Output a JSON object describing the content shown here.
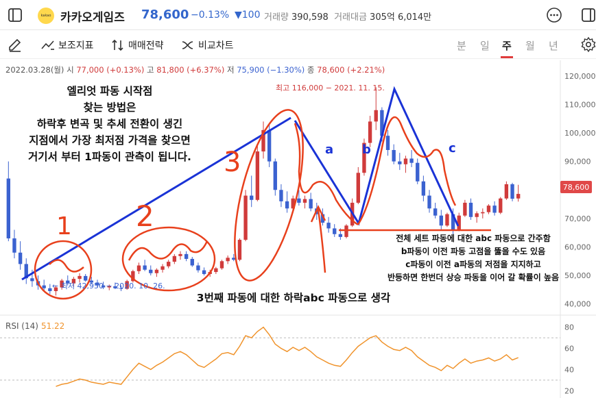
{
  "header": {
    "logo_text": "kakao games",
    "stock_name": "카카오게임즈",
    "price": "78,600",
    "change_pct": "−0.13%",
    "change_abs": "▼100",
    "volume_label": "거래량",
    "volume": "390,598",
    "amount_label": "거래대금",
    "amount": "305억 6,014만"
  },
  "toolbar": {
    "indicators": "보조지표",
    "strategy": "매매전략",
    "compare": "비교차트",
    "periods": [
      "분",
      "일",
      "주",
      "월",
      "년"
    ],
    "active_period": "주"
  },
  "info": {
    "date": "2022.03.28(월)",
    "open_label": "시",
    "open": "77,000 (+0.13%)",
    "high_label": "고",
    "high": "81,800 (+6.37%)",
    "low_label": "저",
    "low": "75,900 (−1.30%)",
    "close_label": "종",
    "close": "78,600 (+2.21%)"
  },
  "annotations": {
    "elliot_title": [
      "엘리엇 파동 시작점",
      "찾는 방법은",
      "하락후 변곡 및 추세 전환이 생긴",
      "지점에서 가장 최저점 가격을 찾으면",
      "거기서 부터 1파동이 관측이 됩니다."
    ],
    "abc_note": "3번째 파동에 대한 하락abc 파동으로 생각",
    "set_note": [
      "전체 세트 파동에 대한 abc 파동으로 간주함",
      "b파동이 이전 파동 고점을 뚫을 수도 있음",
      "c파동이 이전 a파동의 저점을 지지하고",
      "반등하면 한번더 상승 파동을 이어 갈 확률이 높음"
    ],
    "wave_1": "1",
    "wave_2": "2",
    "wave_3": "3",
    "wave_a": "a",
    "wave_b": "b",
    "wave_c": "c",
    "high_marker": "최고 116,000 − 2021. 11. 15.",
    "low_marker": "← 최저 42,950 − 2020. 10. 26.",
    "price_tag": "78,600"
  },
  "rsi": {
    "label": "RSI (14)",
    "value": "51.22"
  },
  "colors": {
    "up": "#d03b3b",
    "down": "#3b62d0",
    "rsi": "#f0932b",
    "annotation_red": "#e8401c",
    "annotation_blue": "#1a33d6"
  },
  "chart_data": {
    "type": "candlestick",
    "ylim": [
      38000,
      125000
    ],
    "yticks": [
      40000,
      50000,
      60000,
      70000,
      80000,
      90000,
      100000,
      110000,
      120000
    ],
    "ytick_labels": [
      "40,000",
      "50,000",
      "60,000",
      "70,000",
      "80,000",
      "90,000",
      "100,000",
      "110,000",
      "120,000"
    ],
    "candles": [
      [
        84000,
        90000,
        62000,
        63000
      ],
      [
        63000,
        66000,
        56000,
        58000
      ],
      [
        58000,
        62000,
        52000,
        54000
      ],
      [
        54000,
        56000,
        47000,
        49000
      ],
      [
        49000,
        52000,
        46000,
        48000
      ],
      [
        48000,
        50000,
        45000,
        46500
      ],
      [
        46500,
        48500,
        44500,
        45500
      ],
      [
        45500,
        47000,
        43500,
        44500
      ],
      [
        44500,
        46500,
        42950,
        45800
      ],
      [
        45800,
        48800,
        45000,
        48200
      ],
      [
        48200,
        50000,
        46500,
        47200
      ],
      [
        47200,
        49500,
        46000,
        48800
      ],
      [
        48800,
        50800,
        47500,
        49800
      ],
      [
        49800,
        50500,
        47800,
        48200
      ],
      [
        48200,
        49500,
        46800,
        47500
      ],
      [
        47500,
        48500,
        45800,
        46500
      ],
      [
        46500,
        47800,
        45200,
        45800
      ],
      [
        45800,
        46800,
        44800,
        46200
      ],
      [
        46200,
        47500,
        45200,
        45500
      ],
      [
        45500,
        46500,
        44500,
        45300
      ],
      [
        45300,
        48500,
        45000,
        48000
      ],
      [
        48000,
        52000,
        47500,
        51500
      ],
      [
        51500,
        54500,
        50500,
        53500
      ],
      [
        53500,
        55500,
        51500,
        52000
      ],
      [
        52000,
        53500,
        50000,
        50800
      ],
      [
        50800,
        52500,
        49500,
        52000
      ],
      [
        52000,
        54000,
        51000,
        53200
      ],
      [
        53200,
        55500,
        52500,
        54800
      ],
      [
        54800,
        57500,
        54000,
        56800
      ],
      [
        56800,
        58500,
        55500,
        57500
      ],
      [
        57500,
        58500,
        55000,
        55800
      ],
      [
        55800,
        56500,
        53000,
        53500
      ],
      [
        53500,
        54500,
        51000,
        51800
      ],
      [
        51800,
        52800,
        50000,
        50500
      ],
      [
        50500,
        52000,
        49500,
        51200
      ],
      [
        51200,
        53000,
        50500,
        52500
      ],
      [
        52500,
        55500,
        52000,
        55000
      ],
      [
        55000,
        57000,
        54000,
        56200
      ],
      [
        56200,
        57500,
        55000,
        55500
      ],
      [
        55500,
        63000,
        55000,
        62500
      ],
      [
        62500,
        80000,
        62000,
        78000
      ],
      [
        78000,
        85000,
        74000,
        76500
      ],
      [
        76500,
        96000,
        76000,
        93500
      ],
      [
        93500,
        104000,
        91000,
        101000
      ],
      [
        101000,
        103000,
        88000,
        90000
      ],
      [
        90000,
        91000,
        78000,
        80000
      ],
      [
        80000,
        82000,
        74000,
        76000
      ],
      [
        76000,
        79500,
        72000,
        73500
      ],
      [
        73500,
        78000,
        72500,
        77000
      ],
      [
        77000,
        80000,
        74500,
        75500
      ],
      [
        75500,
        78000,
        73500,
        76800
      ],
      [
        76800,
        79000,
        72500,
        73500
      ],
      [
        73500,
        75500,
        69500,
        71500
      ],
      [
        71500,
        73500,
        67500,
        68500
      ],
      [
        68500,
        70500,
        65000,
        66500
      ],
      [
        66500,
        68000,
        63500,
        64500
      ],
      [
        64500,
        66500,
        62500,
        63500
      ],
      [
        63500,
        68000,
        63000,
        67500
      ],
      [
        67500,
        77000,
        67000,
        75500
      ],
      [
        75500,
        88000,
        75000,
        86000
      ],
      [
        86000,
        98000,
        85000,
        96500
      ],
      [
        96500,
        106000,
        95000,
        104000
      ],
      [
        104000,
        116000,
        101000,
        108000
      ],
      [
        108000,
        109000,
        97000,
        99000
      ],
      [
        99000,
        101000,
        92000,
        94000
      ],
      [
        94000,
        96000,
        89000,
        90000
      ],
      [
        90000,
        93000,
        87000,
        89000
      ],
      [
        89000,
        92000,
        86000,
        91000
      ],
      [
        91000,
        94000,
        88000,
        89500
      ],
      [
        89500,
        91000,
        82000,
        83000
      ],
      [
        83000,
        85000,
        76000,
        78000
      ],
      [
        78000,
        80000,
        72000,
        73500
      ],
      [
        73500,
        75500,
        70000,
        71000
      ],
      [
        71000,
        73000,
        66000,
        67500
      ],
      [
        67500,
        72000,
        67000,
        71500
      ],
      [
        71500,
        73500,
        64500,
        66000
      ],
      [
        66000,
        72000,
        65500,
        71000
      ],
      [
        71000,
        76500,
        70500,
        75500
      ],
      [
        75500,
        77000,
        69500,
        70500
      ],
      [
        70500,
        72500,
        68500,
        71800
      ],
      [
        71800,
        73500,
        70000,
        72200
      ],
      [
        72200,
        75000,
        71500,
        74500
      ],
      [
        74500,
        76000,
        71000,
        72000
      ],
      [
        72000,
        77500,
        71500,
        77000
      ],
      [
        77000,
        83000,
        76500,
        82000
      ],
      [
        82000,
        82500,
        76000,
        76900
      ],
      [
        77000,
        81800,
        75900,
        78600
      ]
    ],
    "rsi_ylim": [
      15,
      85
    ],
    "rsi_yticks": [
      20,
      40,
      60,
      80
    ],
    "rsi_levels": [
      30,
      70
    ],
    "rsi": [
      null,
      null,
      null,
      null,
      null,
      null,
      null,
      null,
      24,
      26,
      27,
      29,
      31,
      30,
      28,
      27,
      26,
      28,
      27,
      26,
      33,
      40,
      46,
      43,
      40,
      44,
      47,
      51,
      55,
      57,
      54,
      49,
      44,
      42,
      46,
      50,
      55,
      56,
      54,
      62,
      72,
      70,
      76,
      80,
      73,
      64,
      60,
      57,
      61,
      58,
      61,
      57,
      52,
      49,
      46,
      44,
      43,
      49,
      56,
      62,
      66,
      70,
      72,
      66,
      62,
      59,
      58,
      61,
      58,
      52,
      48,
      44,
      42,
      39,
      44,
      41,
      46,
      50,
      46,
      48,
      49,
      51,
      48,
      50,
      54,
      49,
      51.22
    ]
  }
}
